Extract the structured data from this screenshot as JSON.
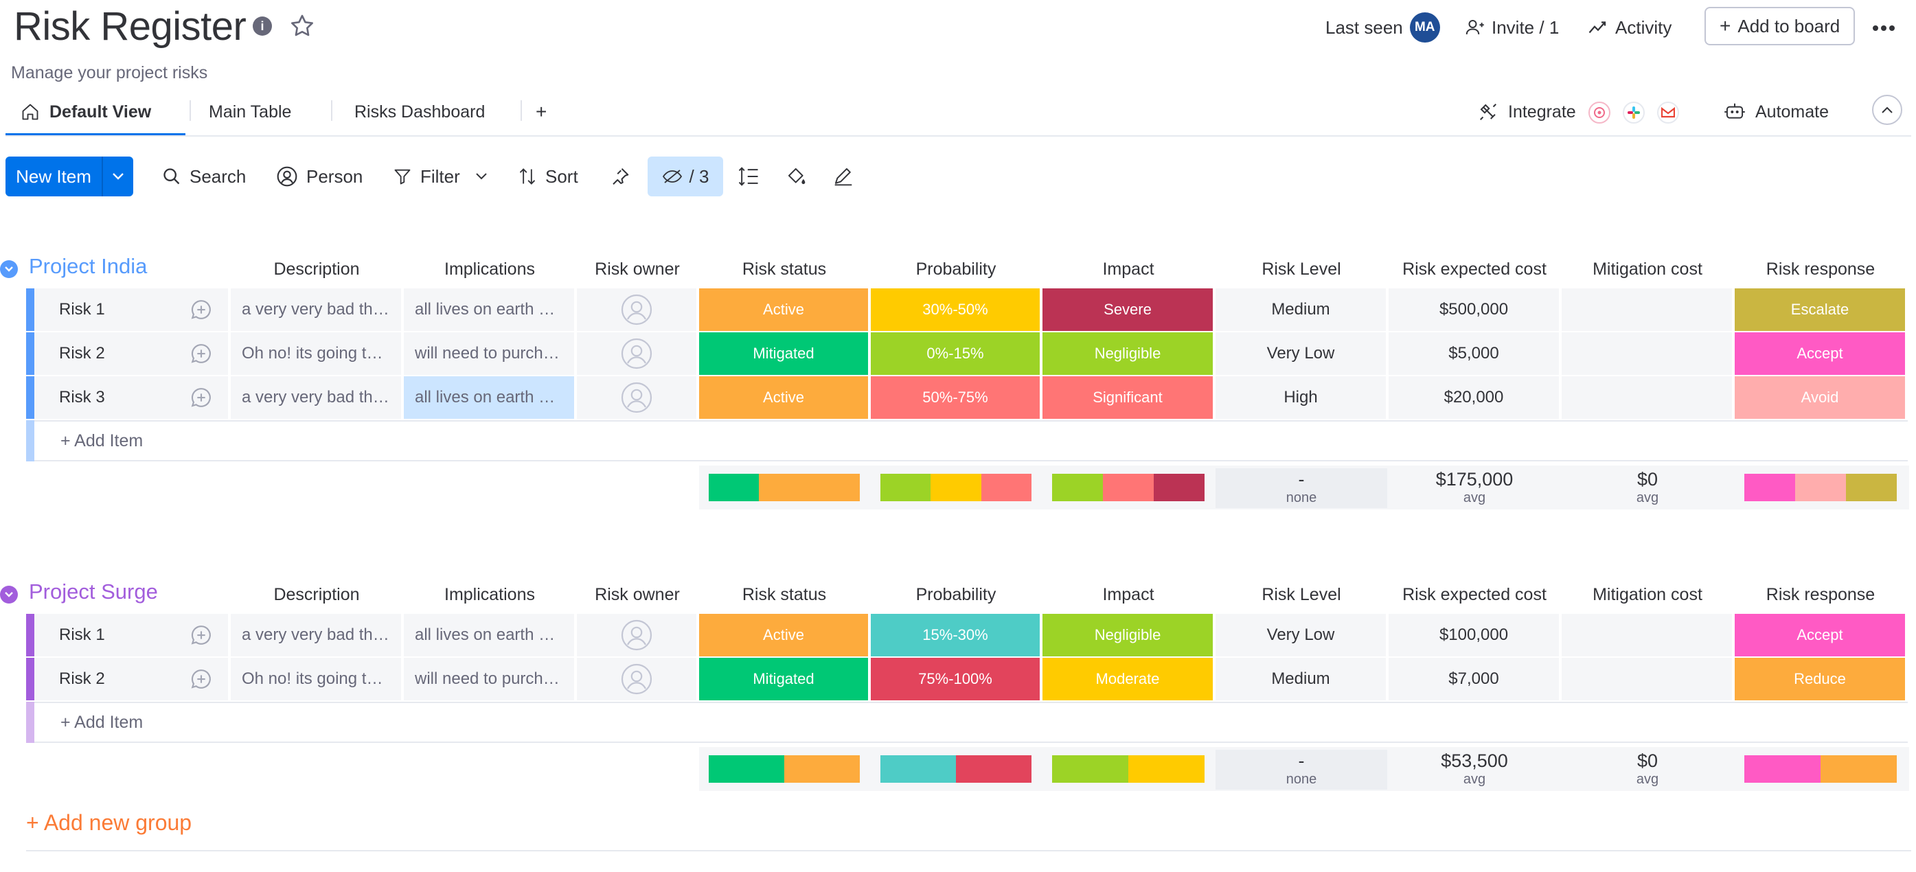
{
  "board": {
    "title": "Risk Register",
    "description": "Manage your project risks"
  },
  "header": {
    "last_seen_label": "Last seen",
    "avatar_initials": "MA",
    "invite_label": "Invite / 1",
    "activity_label": "Activity",
    "add_to_board_label": "Add to board"
  },
  "tabs": [
    {
      "label": "Default View",
      "active": true
    },
    {
      "label": "Main Table",
      "active": false
    },
    {
      "label": "Risks Dashboard",
      "active": false
    }
  ],
  "tab_actions": {
    "add_view": "+",
    "integrate_label": "Integrate",
    "automate_label": "Automate"
  },
  "toolbar": {
    "new_item_label": "New Item",
    "search_label": "Search",
    "person_label": "Person",
    "filter_label": "Filter",
    "sort_label": "Sort",
    "hidden_count": "/ 3"
  },
  "columns": [
    "Description",
    "Implications",
    "Risk owner",
    "Risk status",
    "Probability",
    "Impact",
    "Risk Level",
    "Risk expected cost",
    "Mitigation cost",
    "Risk response"
  ],
  "groups": [
    {
      "title": "Project India",
      "color": "#579bfc",
      "rows": [
        {
          "name": "Risk 1",
          "description": "a very very bad thin…",
          "implications": "all lives on earth wil…",
          "status": "Active",
          "status_color": "#fdab3d",
          "probability": "30%-50%",
          "probability_color": "#ffcb00",
          "impact": "Severe",
          "impact_color": "#bb3354",
          "level": "Medium",
          "expected_cost": "$500,000",
          "mitigation_cost": "",
          "response": "Escalate",
          "response_color": "#cab641"
        },
        {
          "name": "Risk 2",
          "description": "Oh no! its going to …",
          "implications": "will need to purcha…",
          "status": "Mitigated",
          "status_color": "#00c875",
          "probability": "0%-15%",
          "probability_color": "#9cd326",
          "impact": "Negligible",
          "impact_color": "#9cd326",
          "level": "Very Low",
          "expected_cost": "$5,000",
          "mitigation_cost": "",
          "response": "Accept",
          "response_color": "#ff5ac4"
        },
        {
          "name": "Risk 3",
          "description": "a very very bad thin…",
          "implications": "all lives on earth wil…",
          "status": "Active",
          "status_color": "#fdab3d",
          "probability": "50%-75%",
          "probability_color": "#ff7575",
          "impact": "Significant",
          "impact_color": "#ff7575",
          "level": "High",
          "expected_cost": "$20,000",
          "mitigation_cost": "",
          "response": "Avoid",
          "response_color": "#ffadad"
        }
      ],
      "add_item_label": "+ Add Item",
      "summary": {
        "level_value": "-",
        "level_sub": "none",
        "expected_value": "$175,000",
        "expected_sub": "avg",
        "mitigation_value": "$0",
        "mitigation_sub": "avg",
        "status_segments": [
          {
            "color": "#00c875",
            "fraction": 0.333
          },
          {
            "color": "#fdab3d",
            "fraction": 0.667
          }
        ],
        "probability_segments": [
          {
            "color": "#9cd326",
            "fraction": 0.333
          },
          {
            "color": "#ffcb00",
            "fraction": 0.333
          },
          {
            "color": "#ff7575",
            "fraction": 0.334
          }
        ],
        "impact_segments": [
          {
            "color": "#9cd326",
            "fraction": 0.333
          },
          {
            "color": "#ff7575",
            "fraction": 0.333
          },
          {
            "color": "#bb3354",
            "fraction": 0.334
          }
        ],
        "response_segments": [
          {
            "color": "#ff5ac4",
            "fraction": 0.333
          },
          {
            "color": "#ffadad",
            "fraction": 0.333
          },
          {
            "color": "#cab641",
            "fraction": 0.334
          }
        ]
      }
    },
    {
      "title": "Project Surge",
      "color": "#a25ddc",
      "rows": [
        {
          "name": "Risk 1",
          "description": "a very very bad thin…",
          "implications": "all lives on earth wil…",
          "status": "Active",
          "status_color": "#fdab3d",
          "probability": "15%-30%",
          "probability_color": "#4eccc6",
          "impact": "Negligible",
          "impact_color": "#9cd326",
          "level": "Very Low",
          "expected_cost": "$100,000",
          "mitigation_cost": "",
          "response": "Accept",
          "response_color": "#ff5ac4"
        },
        {
          "name": "Risk 2",
          "description": "Oh no! its going to …",
          "implications": "will need to purcha…",
          "status": "Mitigated",
          "status_color": "#00c875",
          "probability": "75%-100%",
          "probability_color": "#e2445c",
          "impact": "Moderate",
          "impact_color": "#ffcb00",
          "level": "Medium",
          "expected_cost": "$7,000",
          "mitigation_cost": "",
          "response": "Reduce",
          "response_color": "#fdab3d"
        }
      ],
      "add_item_label": "+ Add Item",
      "summary": {
        "level_value": "-",
        "level_sub": "none",
        "expected_value": "$53,500",
        "expected_sub": "avg",
        "mitigation_value": "$0",
        "mitigation_sub": "avg",
        "status_segments": [
          {
            "color": "#00c875",
            "fraction": 0.5
          },
          {
            "color": "#fdab3d",
            "fraction": 0.5
          }
        ],
        "probability_segments": [
          {
            "color": "#4eccc6",
            "fraction": 0.5
          },
          {
            "color": "#e2445c",
            "fraction": 0.5
          }
        ],
        "impact_segments": [
          {
            "color": "#9cd326",
            "fraction": 0.5
          },
          {
            "color": "#ffcb00",
            "fraction": 0.5
          }
        ],
        "response_segments": [
          {
            "color": "#ff5ac4",
            "fraction": 0.5
          },
          {
            "color": "#fdab3d",
            "fraction": 0.5
          }
        ]
      }
    }
  ],
  "add_group_label": "+ Add new group"
}
